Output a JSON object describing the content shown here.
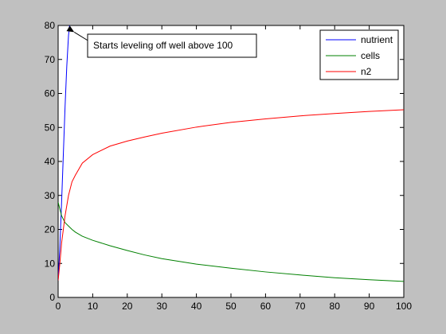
{
  "chart_data": {
    "type": "line",
    "title": "",
    "xlabel": "",
    "ylabel": "",
    "xlim": [
      0,
      100
    ],
    "ylim": [
      0,
      80
    ],
    "x_ticks": [
      "0",
      "10",
      "20",
      "30",
      "40",
      "50",
      "60",
      "70",
      "80",
      "90",
      "100"
    ],
    "y_ticks": [
      "0",
      "10",
      "20",
      "30",
      "40",
      "50",
      "60",
      "70",
      "80"
    ],
    "grid": false,
    "legend_position": "top-right",
    "series": [
      {
        "name": "nutrient",
        "color": "#0000ff",
        "x": [
          0,
          0.5,
          1,
          1.5,
          2,
          2.5,
          3,
          3.5
        ],
        "y": [
          5,
          15,
          28,
          42,
          56,
          68,
          77,
          82
        ]
      },
      {
        "name": "cells",
        "color": "#008000",
        "x": [
          0,
          0.5,
          1,
          2,
          3,
          4,
          5,
          7,
          10,
          15,
          20,
          25,
          30,
          40,
          50,
          60,
          70,
          80,
          90,
          100
        ],
        "y": [
          28,
          26,
          24,
          22,
          21,
          20,
          19.2,
          18,
          16.8,
          15.2,
          13.8,
          12.5,
          11.4,
          9.8,
          8.6,
          7.5,
          6.6,
          5.8,
          5.2,
          4.7
        ]
      },
      {
        "name": "n2",
        "color": "#ff0000",
        "x": [
          0,
          0.5,
          1,
          2,
          3,
          4,
          5,
          7,
          10,
          15,
          20,
          25,
          30,
          40,
          50,
          60,
          70,
          80,
          90,
          100
        ],
        "y": [
          5,
          10,
          16,
          24,
          30,
          34,
          36,
          39.5,
          42,
          44.5,
          46,
          47.2,
          48.3,
          50.1,
          51.5,
          52.5,
          53.4,
          54.1,
          54.7,
          55.2
        ]
      }
    ],
    "annotation": {
      "text": "Starts leveling off well above 100",
      "x": 4.2,
      "y": 78.5
    }
  }
}
